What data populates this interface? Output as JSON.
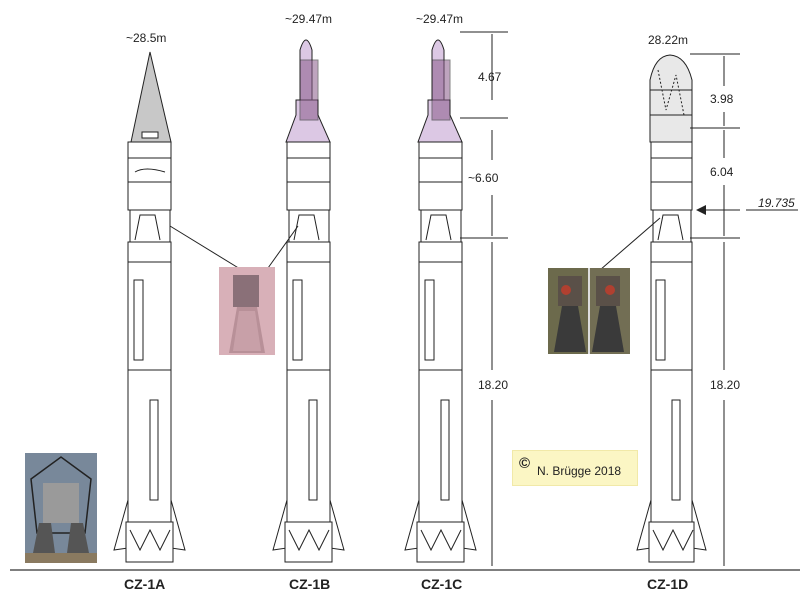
{
  "rockets": [
    {
      "name": "CZ-1A",
      "height_label": "~28.5m"
    },
    {
      "name": "CZ-1B",
      "height_label": "~29.47m"
    },
    {
      "name": "CZ-1C",
      "height_label": "~29.47m"
    },
    {
      "name": "CZ-1D",
      "height_label": "28.22m"
    }
  ],
  "dimensions_cz1c": [
    "4.67",
    "~6.60",
    "18.20"
  ],
  "dimensions_cz1d": [
    "3.98",
    "6.04",
    "18.20"
  ],
  "stage_separation_marker": "19.735",
  "copyright": {
    "symbol": "©",
    "text": "N. Brügge 2018"
  },
  "colors": {
    "outline": "#222222",
    "cz1a_fairing": "#c8c8c8",
    "cz1bc_fairing": "#dcc8e4",
    "cz1bc_payload": "#8a5a8a",
    "copyright_bg": "#fbf6c4",
    "engine_photo_pink": "#d8a8b0",
    "engine_photo_dark": "#3a3a3a"
  }
}
